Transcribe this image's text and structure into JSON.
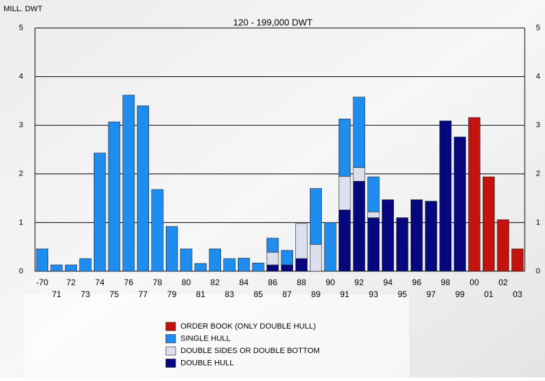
{
  "chart_data": {
    "type": "stacked-bar",
    "title": "120 - 199,000 DWT",
    "y_label": "MILL. DWT",
    "categories": [
      "-70",
      "71",
      "72",
      "73",
      "74",
      "75",
      "76",
      "77",
      "78",
      "79",
      "80",
      "81",
      "82",
      "83",
      "84",
      "85",
      "86",
      "87",
      "88",
      "89",
      "90",
      "91",
      "92",
      "93",
      "94",
      "95",
      "96",
      "97",
      "98",
      "99",
      "00",
      "01",
      "02",
      "03"
    ],
    "series": [
      {
        "name": "ORDER BOOK (ONLY DOUBLE HULL)",
        "color": "#c4120f",
        "values": [
          null,
          null,
          null,
          null,
          null,
          null,
          null,
          null,
          null,
          null,
          null,
          null,
          null,
          null,
          null,
          null,
          null,
          null,
          null,
          null,
          null,
          null,
          null,
          null,
          null,
          null,
          null,
          null,
          null,
          null,
          3.16,
          1.94,
          1.06,
          0.46
        ]
      },
      {
        "name": "SINGLE HULL",
        "color": "#1f8cf0",
        "values": [
          0.46,
          0.13,
          0.13,
          0.26,
          2.43,
          3.07,
          3.62,
          3.4,
          1.68,
          0.92,
          0.46,
          0.16,
          0.46,
          0.26,
          0.27,
          0.17,
          0.29,
          0.3,
          null,
          1.15,
          1.0,
          1.18,
          1.45,
          0.72,
          null,
          null,
          null,
          null,
          null,
          null,
          null,
          null,
          null,
          null
        ]
      },
      {
        "name": "DOUBLE SIDES OR DOUBLE BOTTOM",
        "color": "#dcdfee",
        "values": [
          null,
          null,
          null,
          null,
          null,
          null,
          null,
          null,
          null,
          null,
          null,
          null,
          null,
          null,
          null,
          null,
          0.26,
          null,
          0.72,
          0.55,
          null,
          0.69,
          0.28,
          0.12,
          null,
          null,
          null,
          null,
          null,
          null,
          null,
          null,
          null,
          null
        ]
      },
      {
        "name": "DOUBLE HULL",
        "color": "#06067e",
        "values": [
          null,
          null,
          null,
          null,
          null,
          null,
          null,
          null,
          null,
          null,
          null,
          null,
          null,
          null,
          null,
          null,
          0.13,
          0.13,
          0.26,
          null,
          null,
          1.26,
          1.85,
          1.1,
          1.47,
          1.1,
          1.47,
          1.44,
          3.09,
          2.76,
          null,
          null,
          null,
          null
        ]
      }
    ],
    "ylim": [
      0,
      5
    ],
    "yticks": [
      0,
      1,
      2,
      3,
      4,
      5
    ],
    "grid": true
  }
}
